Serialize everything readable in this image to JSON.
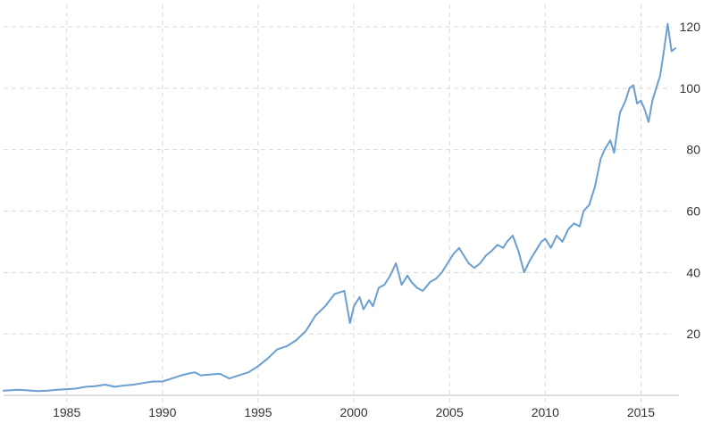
{
  "chart_data": {
    "type": "line",
    "title": "",
    "xlabel": "",
    "ylabel": "",
    "xlim": [
      1981.7,
      2016.8
    ],
    "ylim": [
      0,
      120
    ],
    "x_ticks": [
      1985,
      1990,
      1995,
      2000,
      2005,
      2010,
      2015
    ],
    "x_tick_labels": [
      "1985",
      "1990",
      "1995",
      "2000",
      "2005",
      "2010",
      "2015"
    ],
    "y_ticks": [
      20,
      40,
      60,
      80,
      100,
      120
    ],
    "y_tick_labels": [
      "20",
      "40",
      "60",
      "80",
      "100",
      "120"
    ],
    "grid": true,
    "legend": "none",
    "line_color": "#6b9fd0",
    "series": [
      {
        "x": [
          1981.7,
          1982.5,
          1983.5,
          1984.0,
          1984.5,
          1985.0,
          1985.5,
          1986.0,
          1986.5,
          1987.0,
          1987.5,
          1988.0,
          1988.5,
          1989.0,
          1989.5,
          1990.0,
          1990.5,
          1991.0,
          1991.3,
          1991.7,
          1992.0,
          1992.5,
          1993.0,
          1993.5,
          1994.0,
          1994.5,
          1995.0,
          1995.5,
          1996.0,
          1996.5,
          1997.0,
          1997.5,
          1998.0,
          1998.5,
          1999.0,
          1999.5,
          1999.8,
          2000.0,
          2000.3,
          2000.5,
          2000.8,
          2001.0,
          2001.3,
          2001.6,
          2001.9,
          2002.2,
          2002.5,
          2002.8,
          2003.0,
          2003.3,
          2003.6,
          2004.0,
          2004.3,
          2004.6,
          2004.9,
          2005.2,
          2005.5,
          2005.8,
          2006.0,
          2006.3,
          2006.6,
          2006.9,
          2007.2,
          2007.5,
          2007.8,
          2008.0,
          2008.3,
          2008.6,
          2008.9,
          2009.2,
          2009.5,
          2009.8,
          2010.0,
          2010.3,
          2010.6,
          2010.9,
          2011.2,
          2011.5,
          2011.8,
          2012.0,
          2012.3,
          2012.6,
          2012.9,
          2013.1,
          2013.4,
          2013.6,
          2013.9,
          2014.2,
          2014.4,
          2014.6,
          2014.8,
          2015.0,
          2015.2,
          2015.4,
          2015.6,
          2015.8,
          2016.0,
          2016.2,
          2016.4,
          2016.6,
          2016.8
        ],
        "values": [
          1.5,
          1.8,
          1.4,
          1.5,
          1.8,
          2.0,
          2.2,
          2.8,
          3.0,
          3.5,
          2.8,
          3.2,
          3.5,
          4.0,
          4.5,
          4.5,
          5.5,
          6.5,
          7.0,
          7.5,
          6.5,
          6.8,
          7.0,
          5.5,
          6.5,
          7.5,
          9.5,
          12.0,
          15.0,
          16.0,
          18.0,
          21.0,
          26.0,
          29.0,
          33.0,
          34.0,
          23.5,
          29.0,
          32.0,
          28.0,
          31.0,
          29.0,
          35.0,
          36.0,
          39.0,
          43.0,
          36.0,
          39.0,
          37.0,
          35.0,
          34.0,
          37.0,
          38.0,
          40.0,
          43.0,
          46.0,
          48.0,
          45.0,
          43.0,
          41.5,
          43.0,
          45.5,
          47.0,
          49.0,
          48.0,
          50.0,
          52.0,
          47.0,
          40.0,
          44.0,
          47.0,
          50.0,
          51.0,
          48.0,
          52.0,
          50.0,
          54.0,
          56.0,
          55.0,
          60.0,
          62.0,
          68.0,
          77.0,
          80.0,
          83.0,
          79.0,
          92.0,
          96.0,
          100.0,
          101.0,
          95.0,
          96.0,
          93.0,
          89.0,
          96.0,
          100.0,
          104.0,
          112.0,
          121.0,
          112.0,
          113.0
        ]
      }
    ]
  }
}
